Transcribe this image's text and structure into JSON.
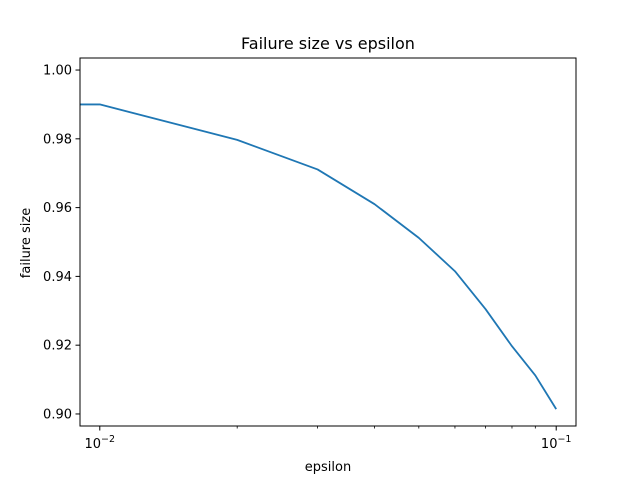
{
  "chart_data": {
    "type": "line",
    "title": "Failure size vs epsilon",
    "xlabel": "epsilon",
    "ylabel": "failure size",
    "xscale": "log",
    "xlim": [
      0.00905,
      0.1105
    ],
    "ylim": [
      0.8965,
      1.0035
    ],
    "grid": false,
    "legend": "none",
    "x_ticks": [
      {
        "value": 0.01,
        "label": "10",
        "exp": "−2"
      },
      {
        "value": 0.1,
        "label": "10",
        "exp": "−1"
      }
    ],
    "y_ticks": [
      {
        "value": 0.9,
        "label": "0.90"
      },
      {
        "value": 0.92,
        "label": "0.92"
      },
      {
        "value": 0.94,
        "label": "0.94"
      },
      {
        "value": 0.96,
        "label": "0.96"
      },
      {
        "value": 0.98,
        "label": "0.98"
      },
      {
        "value": 1.0,
        "label": "1.00"
      }
    ],
    "series": [
      {
        "color": "#1f77b4",
        "x": [
          0.009,
          0.01,
          0.02,
          0.03,
          0.04,
          0.05,
          0.06,
          0.07,
          0.08,
          0.09,
          0.1
        ],
        "y": [
          0.99,
          0.99,
          0.9797,
          0.9711,
          0.961,
          0.9512,
          0.9415,
          0.9305,
          0.9197,
          0.9112,
          0.9014
        ]
      }
    ]
  }
}
